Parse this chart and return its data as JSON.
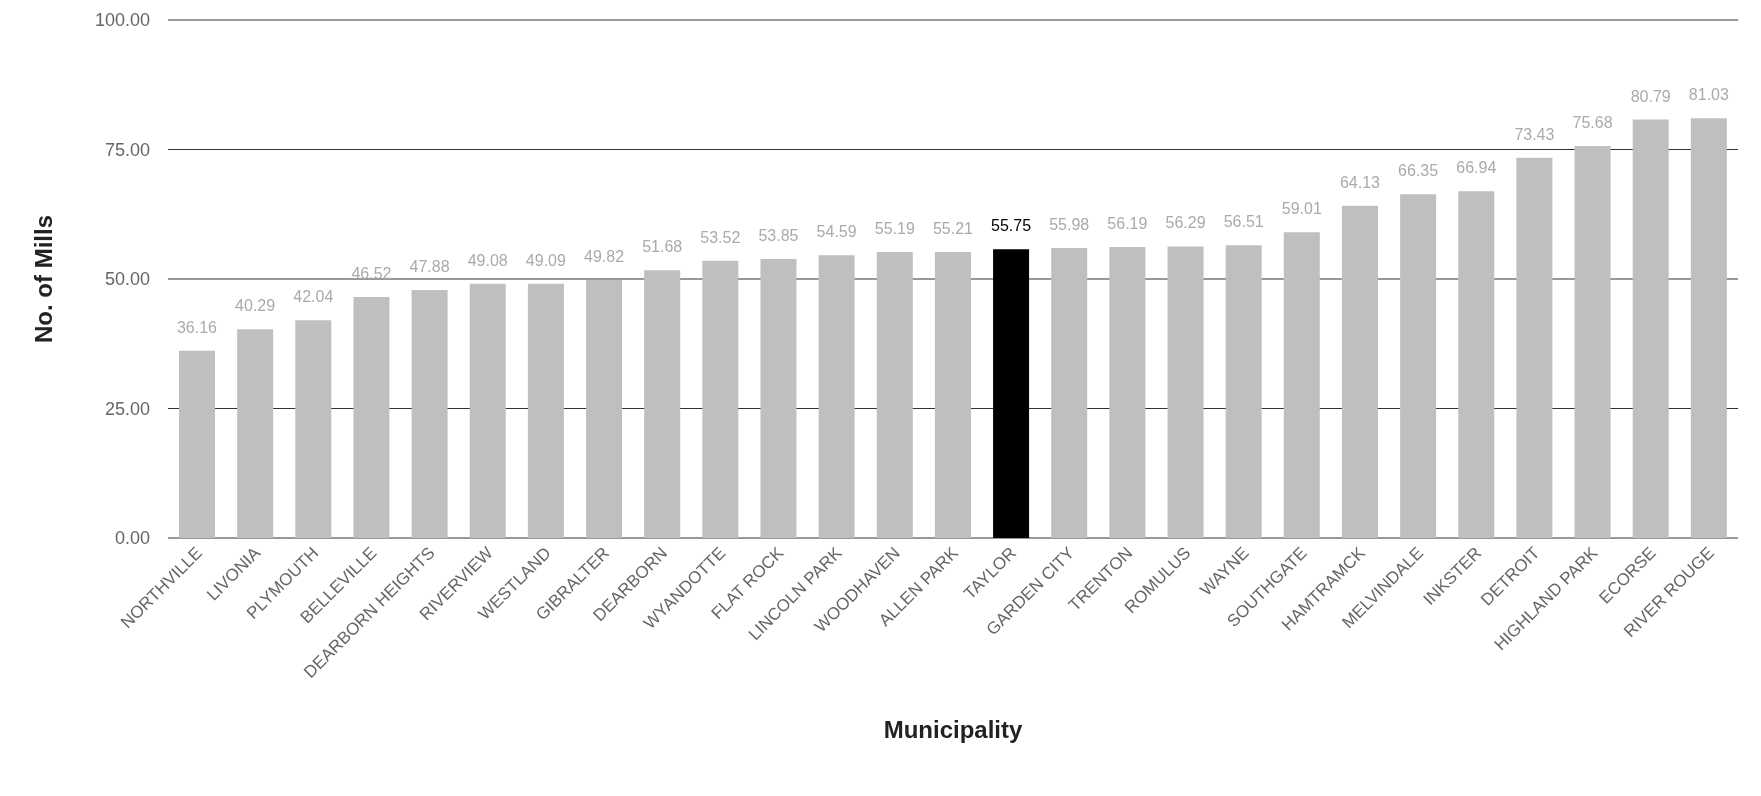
{
  "chart_data": {
    "type": "bar",
    "xlabel": "Municipality",
    "ylabel": "No. of Mills",
    "categories": [
      "NORTHVILLE",
      "LIVONIA",
      "PLYMOUTH",
      "BELLEVILLE",
      "DEARBORN HEIGHTS",
      "RIVERVIEW",
      "WESTLAND",
      "GIBRALTER",
      "DEARBORN",
      "WYANDOTTE",
      "FLAT ROCK",
      "LINCOLN PARK",
      "WOODHAVEN",
      "ALLEN PARK",
      "TAYLOR",
      "GARDEN CITY",
      "TRENTON",
      "ROMULUS",
      "WAYNE",
      "SOUTHGATE",
      "HAMTRAMCK",
      "MELVINDALE",
      "INKSTER",
      "DETROIT",
      "HIGHLAND PARK",
      "ECORSE",
      "RIVER ROUGE"
    ],
    "values": [
      36.16,
      40.29,
      42.04,
      46.52,
      47.88,
      49.08,
      49.09,
      49.82,
      51.68,
      53.52,
      53.85,
      54.59,
      55.19,
      55.21,
      55.75,
      55.98,
      56.19,
      56.29,
      56.51,
      59.01,
      64.13,
      66.35,
      66.94,
      73.43,
      75.68,
      80.79,
      81.03
    ],
    "colors": [
      "#bfbfbf",
      "#bfbfbf",
      "#bfbfbf",
      "#bfbfbf",
      "#bfbfbf",
      "#bfbfbf",
      "#bfbfbf",
      "#bfbfbf",
      "#bfbfbf",
      "#bfbfbf",
      "#bfbfbf",
      "#bfbfbf",
      "#bfbfbf",
      "#bfbfbf",
      "#000000",
      "#bfbfbf",
      "#bfbfbf",
      "#bfbfbf",
      "#bfbfbf",
      "#bfbfbf",
      "#bfbfbf",
      "#bfbfbf",
      "#bfbfbf",
      "#bfbfbf",
      "#bfbfbf",
      "#bfbfbf",
      "#bfbfbf"
    ],
    "ylim": [
      0,
      100
    ],
    "yticks": [
      {
        "value": 0,
        "label": "0.00"
      },
      {
        "value": 25,
        "label": "25.00"
      },
      {
        "value": 50,
        "label": "50.00"
      },
      {
        "value": 75,
        "label": "75.00"
      },
      {
        "value": 100,
        "label": "100.00"
      }
    ],
    "grid": "y",
    "data_labels": true
  }
}
